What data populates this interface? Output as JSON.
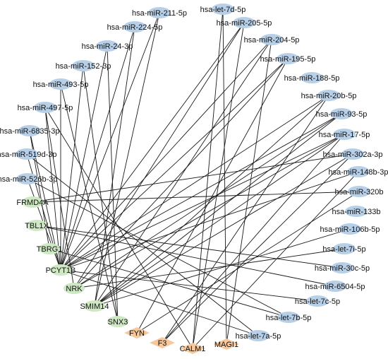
{
  "colors": {
    "mirna_node": "#b8cfe8",
    "gene_node": "#cfe8c4",
    "target_node": "#f7c89c",
    "edge": "#1a1a1a"
  },
  "nodes": [
    {
      "id": "let7d",
      "label": "hsa-let-7d-5p",
      "type": "mirna"
    },
    {
      "id": "m205",
      "label": "hsa-miR-205-5p",
      "type": "mirna"
    },
    {
      "id": "m204",
      "label": "hsa-miR-204-5p",
      "type": "mirna"
    },
    {
      "id": "m195",
      "label": "hsa-miR-195-5p",
      "type": "mirna"
    },
    {
      "id": "m188",
      "label": "hsa-miR-188-5p",
      "type": "mirna"
    },
    {
      "id": "m20b",
      "label": "hsa-miR-20b-5p",
      "type": "mirna"
    },
    {
      "id": "m93",
      "label": "hsa-miR-93-5p",
      "type": "mirna"
    },
    {
      "id": "m17",
      "label": "hsa-miR-17-5p",
      "type": "mirna"
    },
    {
      "id": "m302a",
      "label": "hsa-miR-302a-3p",
      "type": "mirna"
    },
    {
      "id": "m148b",
      "label": "hsa-miR-148b-3p",
      "type": "mirna"
    },
    {
      "id": "m320b",
      "label": "hsa-miR-320b",
      "type": "mirna"
    },
    {
      "id": "m133b",
      "label": "hsa-miR-133b",
      "type": "mirna"
    },
    {
      "id": "m106b",
      "label": "hsa-miR-106b-5p",
      "type": "mirna"
    },
    {
      "id": "let7i",
      "label": "hsa-let-7i-5p",
      "type": "mirna"
    },
    {
      "id": "m30c",
      "label": "hsa-miR-30c-5p",
      "type": "mirna"
    },
    {
      "id": "m6504",
      "label": "hsa-miR-6504-5p",
      "type": "mirna"
    },
    {
      "id": "let7c",
      "label": "hsa-let-7c-5p",
      "type": "mirna"
    },
    {
      "id": "let7b",
      "label": "hsa-let-7b-5p",
      "type": "mirna"
    },
    {
      "id": "let7a",
      "label": "hsa-let-7a-5p",
      "type": "mirna"
    },
    {
      "id": "magi1",
      "label": "MAGI1",
      "type": "target"
    },
    {
      "id": "calm1",
      "label": "CALM1",
      "type": "target"
    },
    {
      "id": "f3",
      "label": "F3",
      "type": "target"
    },
    {
      "id": "fyn",
      "label": "FYN",
      "type": "target"
    },
    {
      "id": "snx3",
      "label": "SNX3",
      "type": "gene"
    },
    {
      "id": "smim14",
      "label": "SMIM14",
      "type": "gene"
    },
    {
      "id": "nrk",
      "label": "NRK",
      "type": "gene"
    },
    {
      "id": "pcyt1b",
      "label": "PCYT1B",
      "type": "gene"
    },
    {
      "id": "tbrg1",
      "label": "TBRG1",
      "type": "gene"
    },
    {
      "id": "tbl1x",
      "label": "TBL1X",
      "type": "gene"
    },
    {
      "id": "frmd4a",
      "label": "FRMD4A",
      "type": "gene"
    },
    {
      "id": "m526b",
      "label": "hsa-miR-526b-3p",
      "type": "mirna"
    },
    {
      "id": "m519d",
      "label": "hsa-miR-519d-3p",
      "type": "mirna"
    },
    {
      "id": "m6835",
      "label": "hsa-miR-6835-3p",
      "type": "mirna"
    },
    {
      "id": "m497",
      "label": "hsa-miR-497-5p",
      "type": "mirna"
    },
    {
      "id": "m493",
      "label": "hsa-miR-493-5p",
      "type": "mirna"
    },
    {
      "id": "m152",
      "label": "hsa-miR-152-3p",
      "type": "mirna"
    },
    {
      "id": "m24",
      "label": "hsa-miR-24-3p",
      "type": "mirna"
    },
    {
      "id": "m224",
      "label": "hsa-miR-224-5p",
      "type": "mirna"
    },
    {
      "id": "m211",
      "label": "hsa-miR-211-5p",
      "type": "mirna"
    }
  ],
  "edges": [
    [
      "pcyt1b",
      "m211"
    ],
    [
      "pcyt1b",
      "m224"
    ],
    [
      "pcyt1b",
      "m24"
    ],
    [
      "pcyt1b",
      "m152"
    ],
    [
      "pcyt1b",
      "m493"
    ],
    [
      "pcyt1b",
      "m497"
    ],
    [
      "pcyt1b",
      "m6835"
    ],
    [
      "pcyt1b",
      "m519d"
    ],
    [
      "pcyt1b",
      "m526b"
    ],
    [
      "pcyt1b",
      "m205"
    ],
    [
      "pcyt1b",
      "m204"
    ],
    [
      "pcyt1b",
      "m195"
    ],
    [
      "pcyt1b",
      "m20b"
    ],
    [
      "pcyt1b",
      "m93"
    ],
    [
      "pcyt1b",
      "m17"
    ],
    [
      "pcyt1b",
      "m148b"
    ],
    [
      "pcyt1b",
      "let7c"
    ],
    [
      "pcyt1b",
      "let7a"
    ],
    [
      "smim14",
      "m224"
    ],
    [
      "smim14",
      "m211"
    ],
    [
      "smim14",
      "m17"
    ],
    [
      "smim14",
      "m93"
    ],
    [
      "smim14",
      "m302a"
    ],
    [
      "smim14",
      "m20b"
    ],
    [
      "smim14",
      "m106b"
    ],
    [
      "smim14",
      "m204"
    ],
    [
      "nrk",
      "m205"
    ],
    [
      "nrk",
      "m93"
    ],
    [
      "nrk",
      "m17"
    ],
    [
      "nrk",
      "let7i"
    ],
    [
      "nrk",
      "m195"
    ],
    [
      "nrk",
      "m497"
    ],
    [
      "snx3",
      "m152"
    ],
    [
      "snx3",
      "m24"
    ],
    [
      "snx3",
      "m493"
    ],
    [
      "fyn",
      "m320b"
    ],
    [
      "fyn",
      "m195"
    ],
    [
      "f3",
      "m20b"
    ],
    [
      "f3",
      "m17"
    ],
    [
      "f3",
      "m302a"
    ],
    [
      "calm1",
      "m497"
    ],
    [
      "calm1",
      "let7d"
    ],
    [
      "calm1",
      "m205"
    ],
    [
      "calm1",
      "m148b"
    ],
    [
      "magi1",
      "m204"
    ],
    [
      "magi1",
      "let7d"
    ],
    [
      "frmd4a",
      "m302a"
    ],
    [
      "frmd4a",
      "m320b"
    ],
    [
      "tbl1x",
      "m6504"
    ],
    [
      "tbl1x",
      "m30c"
    ],
    [
      "tbrg1",
      "let7b"
    ],
    [
      "tbrg1",
      "m6835"
    ],
    [
      "let7a",
      "m519d"
    ],
    [
      "let7b",
      "m526b"
    ]
  ]
}
